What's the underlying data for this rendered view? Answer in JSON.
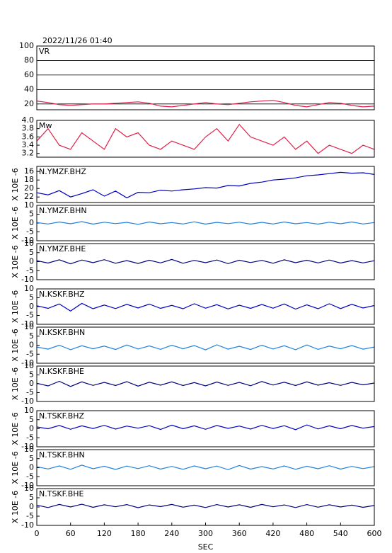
{
  "header": {
    "title": "2022/11/26 01:40"
  },
  "chart_data": [
    {
      "type": "line",
      "label": "VR",
      "color": "#e0204a",
      "grid": true,
      "xlim": [
        0,
        600
      ],
      "ylim": [
        12,
        100
      ],
      "yticks": [
        20,
        40,
        60,
        80,
        100
      ],
      "x": [
        0,
        20,
        40,
        60,
        80,
        100,
        120,
        140,
        160,
        180,
        200,
        220,
        240,
        260,
        280,
        300,
        320,
        340,
        360,
        380,
        400,
        420,
        440,
        460,
        480,
        500,
        520,
        540,
        560,
        580,
        600
      ],
      "values": [
        24,
        22,
        19,
        18,
        19,
        20,
        20,
        21,
        22,
        23,
        21,
        17,
        16,
        18,
        20,
        22,
        20,
        19,
        21,
        23,
        24,
        25,
        22,
        18,
        16,
        19,
        22,
        21,
        18,
        16,
        17
      ]
    },
    {
      "type": "line",
      "label": "Mw",
      "color": "#e0204a",
      "grid": false,
      "xlim": [
        0,
        600
      ],
      "ylim": [
        3.11,
        4.0
      ],
      "yticks": [
        {
          "value": 3.2,
          "label": "3.2"
        },
        {
          "value": 3.4,
          "label": "3.4"
        },
        {
          "value": 3.6,
          "label": "3.6"
        },
        {
          "value": 3.8,
          "label": "3.8"
        },
        {
          "value": 4,
          "label": "4.0"
        }
      ],
      "x": [
        0,
        20,
        40,
        60,
        80,
        100,
        120,
        140,
        160,
        180,
        200,
        220,
        240,
        260,
        280,
        300,
        320,
        340,
        360,
        380,
        400,
        420,
        440,
        460,
        480,
        500,
        520,
        540,
        560,
        580,
        600
      ],
      "values": [
        3.5,
        3.8,
        3.4,
        3.3,
        3.7,
        3.5,
        3.3,
        3.8,
        3.6,
        3.7,
        3.4,
        3.3,
        3.5,
        3.4,
        3.3,
        3.6,
        3.8,
        3.5,
        3.9,
        3.6,
        3.5,
        3.4,
        3.6,
        3.3,
        3.5,
        3.2,
        3.4,
        3.3,
        3.2,
        3.4,
        3.3
      ]
    },
    {
      "type": "line",
      "label": "N.YMZF.BHZ",
      "ylabel": "X 10E -6",
      "color": "#0000c0",
      "xlim": [
        0,
        600
      ],
      "ylim": [
        23.3,
        14.8
      ],
      "yticks": [
        16,
        18,
        20,
        22
      ],
      "x": [
        0,
        20,
        40,
        60,
        80,
        100,
        120,
        140,
        160,
        180,
        200,
        220,
        240,
        260,
        280,
        300,
        320,
        340,
        360,
        380,
        400,
        420,
        440,
        460,
        480,
        500,
        520,
        540,
        560,
        580,
        600
      ],
      "values": [
        21.0,
        21.5,
        20.5,
        22.0,
        21.2,
        20.3,
        21.8,
        20.6,
        22.2,
        20.9,
        21.0,
        20.4,
        20.6,
        20.3,
        20.1,
        19.8,
        19.9,
        19.3,
        19.4,
        18.8,
        18.5,
        18.0,
        17.8,
        17.5,
        17.0,
        16.8,
        16.5,
        16.2,
        16.4,
        16.3,
        16.7
      ]
    },
    {
      "type": "line",
      "label": "N.YMZF.BHN",
      "ylabel": "X 10E -6",
      "color": "#2080e0",
      "xlim": [
        0,
        600
      ],
      "ylim": [
        -10,
        10
      ],
      "yticks": [
        -10,
        -5,
        0,
        5,
        10
      ],
      "x": [
        0,
        20,
        40,
        60,
        80,
        100,
        120,
        140,
        160,
        180,
        200,
        220,
        240,
        260,
        280,
        300,
        320,
        340,
        360,
        380,
        400,
        420,
        440,
        460,
        480,
        500,
        520,
        540,
        560,
        580,
        600
      ],
      "values": [
        0.3,
        -0.5,
        0.6,
        -0.4,
        0.8,
        -0.6,
        0.5,
        -0.3,
        0.4,
        -0.7,
        0.6,
        -0.4,
        0.3,
        -0.5,
        0.7,
        -0.6,
        0.4,
        -0.3,
        0.5,
        -0.6,
        0.4,
        -0.5,
        0.6,
        -0.4,
        0.3,
        -0.6,
        0.5,
        -0.4,
        0.6,
        -0.5,
        0.3
      ]
    },
    {
      "type": "line",
      "label": "N.YMZF.BHE",
      "ylabel": "X 10E -6",
      "color": "#000080",
      "xlim": [
        0,
        600
      ],
      "ylim": [
        -10,
        10
      ],
      "yticks": [
        -10,
        -5,
        0,
        5,
        10
      ],
      "x": [
        0,
        20,
        40,
        60,
        80,
        100,
        120,
        140,
        160,
        180,
        200,
        220,
        240,
        260,
        280,
        300,
        320,
        340,
        360,
        380,
        400,
        420,
        440,
        460,
        480,
        500,
        520,
        540,
        560,
        580,
        600
      ],
      "values": [
        0.5,
        -0.8,
        1.0,
        -1.2,
        0.9,
        -0.6,
        1.1,
        -0.9,
        0.6,
        -1.0,
        0.8,
        -0.7,
        1.2,
        -0.9,
        0.7,
        -0.6,
        0.9,
        -1.1,
        0.8,
        -0.5,
        0.7,
        -0.9,
        1.0,
        -0.6,
        0.8,
        -0.7,
        0.9,
        -0.8,
        0.6,
        -0.7,
        0.5
      ]
    },
    {
      "type": "line",
      "label": "N.KSKF.BHZ",
      "ylabel": "X 10E -6",
      "color": "#0000c0",
      "xlim": [
        0,
        600
      ],
      "ylim": [
        -10,
        10
      ],
      "yticks": [
        -10,
        -5,
        0,
        5,
        10
      ],
      "x": [
        0,
        20,
        40,
        60,
        80,
        100,
        120,
        140,
        160,
        180,
        200,
        220,
        240,
        260,
        280,
        300,
        320,
        340,
        360,
        380,
        400,
        420,
        440,
        460,
        480,
        500,
        520,
        540,
        560,
        580,
        600
      ],
      "values": [
        0.5,
        -1.0,
        1.5,
        -2.5,
        1.8,
        -1.2,
        0.9,
        -1.1,
        1.3,
        -0.8,
        1.4,
        -1.0,
        0.7,
        -1.2,
        1.6,
        -0.9,
        1.1,
        -1.3,
        0.8,
        -1.0,
        1.2,
        -0.9,
        1.5,
        -1.4,
        1.0,
        -1.2,
        1.6,
        -1.1,
        1.3,
        -0.8,
        0.6
      ]
    },
    {
      "type": "line",
      "label": "N.KSKF.BHN",
      "ylabel": "X 10E -6",
      "color": "#2080e0",
      "xlim": [
        0,
        600
      ],
      "ylim": [
        -10,
        10
      ],
      "yticks": [
        -10,
        -5,
        0,
        5,
        10
      ],
      "x": [
        0,
        20,
        40,
        60,
        80,
        100,
        120,
        140,
        160,
        180,
        200,
        220,
        240,
        260,
        280,
        300,
        320,
        340,
        360,
        380,
        400,
        420,
        440,
        460,
        480,
        500,
        520,
        540,
        560,
        580,
        600
      ],
      "values": [
        -1.0,
        -2.2,
        0.0,
        -2.5,
        -0.3,
        -2.0,
        -0.5,
        -2.4,
        0.1,
        -2.1,
        -0.4,
        -2.3,
        0.0,
        -2.0,
        -0.2,
        -2.6,
        0.2,
        -2.2,
        -0.6,
        -2.4,
        0.0,
        -2.1,
        -0.3,
        -2.5,
        0.1,
        -2.3,
        -0.5,
        -2.0,
        -0.2,
        -2.2,
        -1.0
      ]
    },
    {
      "type": "line",
      "label": "N.KSKF.BHE",
      "ylabel": "X 10E -6",
      "color": "#000080",
      "xlim": [
        0,
        600
      ],
      "ylim": [
        -10,
        10
      ],
      "yticks": [
        -10,
        -5,
        0,
        5,
        10
      ],
      "x": [
        0,
        20,
        40,
        60,
        80,
        100,
        120,
        140,
        160,
        180,
        200,
        220,
        240,
        260,
        280,
        300,
        320,
        340,
        360,
        380,
        400,
        420,
        440,
        460,
        480,
        500,
        520,
        540,
        560,
        580,
        600
      ],
      "values": [
        0.3,
        -1.2,
        1.4,
        -1.5,
        1.1,
        -0.9,
        0.8,
        -1.0,
        1.2,
        -1.3,
        0.9,
        -0.8,
        1.1,
        -1.0,
        0.7,
        -1.2,
        1.0,
        -0.9,
        0.8,
        -1.1,
        1.3,
        -0.7,
        0.9,
        -1.0,
        1.1,
        -0.8,
        0.6,
        -0.9,
        0.8,
        -0.6,
        0.4
      ]
    },
    {
      "type": "line",
      "label": "N.TSKF.BHZ",
      "ylabel": "X 10E -6",
      "color": "#0000c0",
      "xlim": [
        0,
        600
      ],
      "ylim": [
        -10,
        10
      ],
      "yticks": [
        -10,
        -5,
        0,
        5,
        10
      ],
      "x": [
        0,
        20,
        40,
        60,
        80,
        100,
        120,
        140,
        160,
        180,
        200,
        220,
        240,
        260,
        280,
        300,
        320,
        340,
        360,
        380,
        400,
        420,
        440,
        460,
        480,
        500,
        520,
        540,
        560,
        580,
        600
      ],
      "values": [
        1.0,
        0.0,
        1.8,
        -0.3,
        1.6,
        0.1,
        1.9,
        -0.2,
        1.5,
        0.3,
        1.7,
        -0.4,
        2.0,
        0.0,
        1.6,
        -0.3,
        1.8,
        0.2,
        1.5,
        -0.2,
        1.9,
        0.1,
        1.7,
        -0.5,
        2.1,
        -0.1,
        1.6,
        0.0,
        1.8,
        0.3,
        1.2
      ]
    },
    {
      "type": "line",
      "label": "N.TSKF.BHN",
      "ylabel": "X 10E -6",
      "color": "#2080e0",
      "xlim": [
        0,
        600
      ],
      "ylim": [
        -10,
        10
      ],
      "yticks": [
        -10,
        -5,
        0,
        5,
        10
      ],
      "x": [
        0,
        20,
        40,
        60,
        80,
        100,
        120,
        140,
        160,
        180,
        200,
        220,
        240,
        260,
        280,
        300,
        320,
        340,
        360,
        380,
        400,
        420,
        440,
        460,
        480,
        500,
        520,
        540,
        560,
        580,
        600
      ],
      "values": [
        0.5,
        -0.7,
        1.0,
        -0.9,
        1.4,
        -0.6,
        0.8,
        -1.0,
        0.9,
        -0.5,
        1.1,
        -0.8,
        0.7,
        -0.9,
        1.0,
        -0.6,
        0.9,
        -1.1,
        1.2,
        -0.8,
        0.6,
        -0.7,
        1.0,
        -0.9,
        0.8,
        -0.6,
        1.1,
        -0.8,
        0.7,
        -0.5,
        0.6
      ]
    },
    {
      "type": "line",
      "label": "N.TSKF.BHE",
      "ylabel": "X 10E -6",
      "color": "#000080",
      "xlim": [
        0,
        600
      ],
      "ylim": [
        -10,
        10
      ],
      "yticks": [
        -10,
        -5,
        0,
        5,
        10
      ],
      "xticks": [
        0,
        60,
        120,
        180,
        240,
        300,
        360,
        420,
        480,
        540,
        600
      ],
      "xlabel": "SEC",
      "x": [
        0,
        20,
        40,
        60,
        80,
        100,
        120,
        140,
        160,
        180,
        200,
        220,
        240,
        260,
        280,
        300,
        320,
        340,
        360,
        380,
        400,
        420,
        440,
        460,
        480,
        500,
        520,
        540,
        560,
        580,
        600
      ],
      "values": [
        1.0,
        -0.3,
        1.4,
        0.0,
        1.5,
        -0.2,
        1.2,
        0.1,
        1.3,
        -0.4,
        1.1,
        0.2,
        1.4,
        -0.1,
        1.0,
        -0.3,
        1.3,
        0.0,
        1.2,
        -0.2,
        1.4,
        0.1,
        1.1,
        -0.3,
        1.3,
        -0.1,
        1.2,
        0.0,
        1.0,
        -0.2,
        0.8
      ]
    }
  ]
}
